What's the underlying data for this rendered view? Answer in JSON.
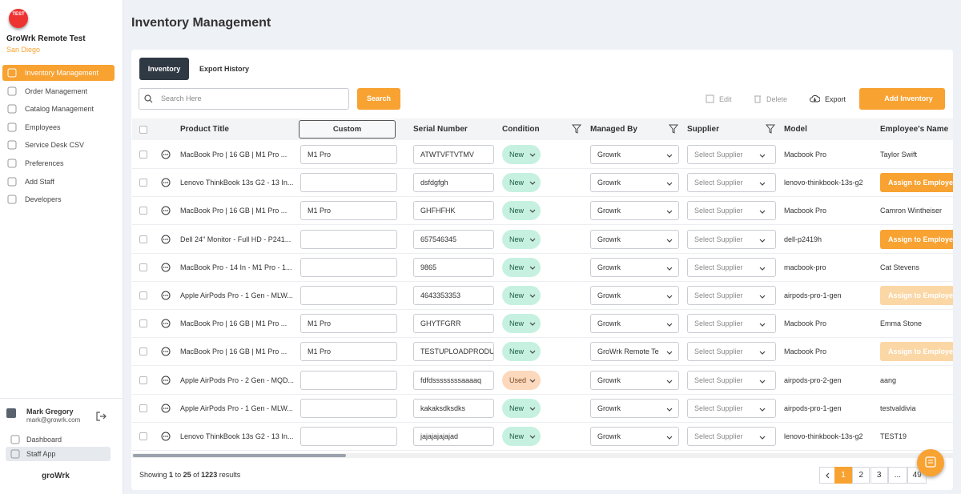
{
  "sidebar": {
    "badge": "TEST",
    "company": "GroWrk Remote Test",
    "location": "San Diego",
    "nav": [
      {
        "label": "Inventory Management",
        "active": true
      },
      {
        "label": "Order Management"
      },
      {
        "label": "Catalog Management"
      },
      {
        "label": "Employees"
      },
      {
        "label": "Service Desk CSV"
      },
      {
        "label": "Preferences"
      },
      {
        "label": "Add Staff"
      },
      {
        "label": "Developers"
      }
    ],
    "user": {
      "name": "Mark Gregory",
      "email": "mark@growrk.com"
    },
    "links": [
      {
        "label": "Dashboard"
      },
      {
        "label": "Staff App",
        "active": true
      }
    ],
    "brand": "groWrk"
  },
  "header": {
    "title": "Inventory Management"
  },
  "tabs": [
    {
      "label": "Inventory",
      "active": true
    },
    {
      "label": "Export History"
    }
  ],
  "search": {
    "placeholder": "Search Here",
    "button": "Search"
  },
  "actions": {
    "edit": "Edit",
    "delete": "Delete",
    "export": "Export",
    "add": "Add Inventory"
  },
  "table": {
    "columns": [
      {
        "label": "Product Title"
      },
      {
        "label": "Custom",
        "boxed": true
      },
      {
        "label": "Serial Number"
      },
      {
        "label": "Condition",
        "filter": true
      },
      {
        "label": "Managed By",
        "filter": true
      },
      {
        "label": "Supplier",
        "filter": true
      },
      {
        "label": "Model"
      },
      {
        "label": "Employee's Name"
      }
    ],
    "rows": [
      {
        "product": "MacBook Pro | 16 GB | M1 Pro ...",
        "custom": "M1 Pro",
        "serial": "ATWTVFTVTMV",
        "condition": "New",
        "managed_by": "Growrk",
        "supplier": "Select Supplier",
        "model": "Macbook Pro",
        "employee": "Taylor Swift"
      },
      {
        "product": "Lenovo ThinkBook 13s G2 - 13 In...",
        "custom": null,
        "serial": "dsfdgfgh",
        "condition": "New",
        "managed_by": "Growrk",
        "supplier": "Select Supplier",
        "model": "lenovo-thinkbook-13s-g2",
        "employee": {
          "button": "Assign to Employee"
        }
      },
      {
        "product": "MacBook Pro | 16 GB | M1 Pro ...",
        "custom": "M1 Pro",
        "serial": "GHFHFHK",
        "condition": "New",
        "managed_by": "Growrk",
        "supplier": "Select Supplier",
        "model": "Macbook Pro",
        "employee": "Camron Wintheiser"
      },
      {
        "product": "Dell 24\" Monitor - Full HD - P241...",
        "custom": null,
        "serial": "657546345",
        "condition": "New",
        "managed_by": "Growrk",
        "supplier": "Select Supplier",
        "model": "dell-p2419h",
        "employee": {
          "button": "Assign to Employee"
        }
      },
      {
        "product": "MacBook Pro - 14 In - M1 Pro - 1...",
        "custom": null,
        "serial": "9865",
        "condition": "New",
        "managed_by": "Growrk",
        "supplier": "Select Supplier",
        "model": "macbook-pro",
        "employee": "Cat Stevens"
      },
      {
        "product": "Apple AirPods Pro - 1 Gen - MLW...",
        "custom": null,
        "serial": "4643353353",
        "condition": "New",
        "managed_by": "Growrk",
        "supplier": "Select Supplier",
        "model": "airpods-pro-1-gen",
        "employee": {
          "button": "Assign to Employee",
          "disabled": true
        }
      },
      {
        "product": "MacBook Pro | 16 GB | M1 Pro ...",
        "custom": "M1 Pro",
        "serial": "GHYTFGRR",
        "condition": "New",
        "managed_by": "Growrk",
        "supplier": "Select Supplier",
        "model": "Macbook Pro",
        "employee": "Emma Stone"
      },
      {
        "product": "MacBook Pro | 16 GB | M1 Pro ...",
        "custom": "M1 Pro",
        "serial": "TESTUPLOADPRODU",
        "condition": "New",
        "managed_by": "GroWrk Remote Te",
        "supplier": "Select Supplier",
        "model": "Macbook Pro",
        "employee": {
          "button": "Assign to Employee",
          "disabled": true
        }
      },
      {
        "product": "Apple AirPods Pro - 2 Gen - MQD...",
        "custom": null,
        "serial": "fdfdssssssssaaaaq",
        "condition": "Used",
        "managed_by": "Growrk",
        "supplier": "Select Supplier",
        "model": "airpods-pro-2-gen",
        "employee": "aang"
      },
      {
        "product": "Apple AirPods Pro - 1 Gen - MLW...",
        "custom": null,
        "serial": "kakaksdksdks",
        "condition": "New",
        "managed_by": "Growrk",
        "supplier": "Select Supplier",
        "model": "airpods-pro-1-gen",
        "employee": "testvaldivia"
      },
      {
        "product": "Lenovo ThinkBook 13s G2 - 13 In...",
        "custom": null,
        "serial": "jajajajajajad",
        "condition": "New",
        "managed_by": "Growrk",
        "supplier": "Select Supplier",
        "model": "lenovo-thinkbook-13s-g2",
        "employee": "TEST19"
      }
    ]
  },
  "footer": {
    "showing": [
      "Showing",
      1,
      "to",
      25,
      "of",
      1223,
      "results"
    ],
    "pages": [
      {
        "label": 1,
        "active": true
      },
      {
        "label": 2
      },
      {
        "label": 3
      },
      {
        "label": "..."
      },
      {
        "label": 49
      }
    ]
  }
}
